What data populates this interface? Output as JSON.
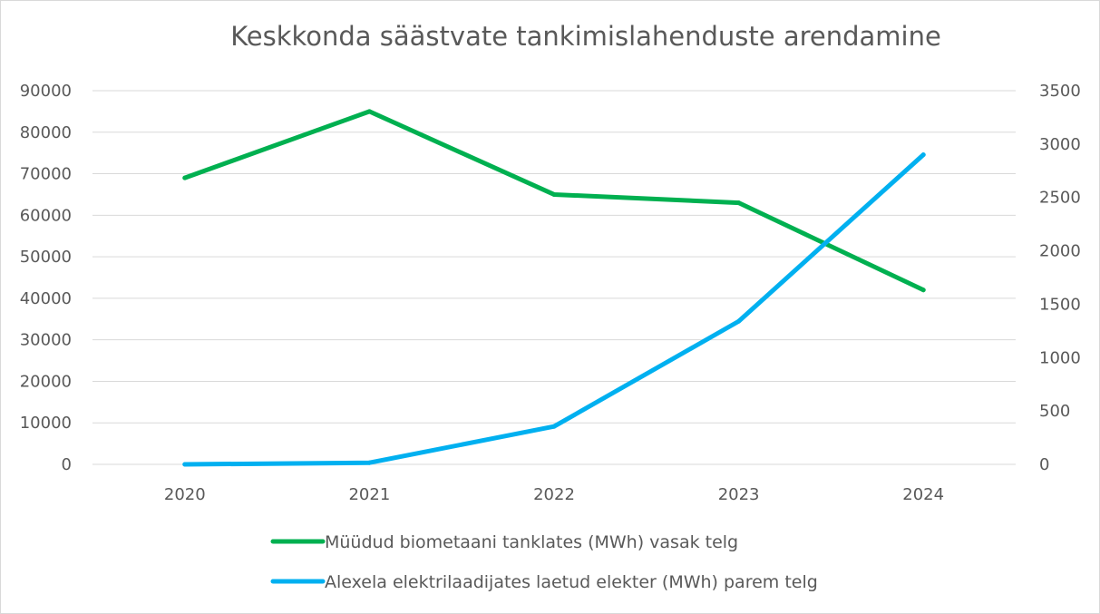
{
  "chart_data": {
    "type": "line",
    "title": "Keskkonda säästvate tankimislahenduste arendamine",
    "categories": [
      "2020",
      "2021",
      "2022",
      "2023",
      "2024"
    ],
    "series": [
      {
        "name": "Müüdud biometaani tanklates (MWh) vasak telg",
        "axis": "left",
        "color": "#00B050",
        "values": [
          69000,
          85000,
          65000,
          63000,
          42000
        ]
      },
      {
        "name": "Alexela elektrilaadijates laetud elekter (MWh) parem telg",
        "axis": "right",
        "color": "#00B0F0",
        "values": [
          0,
          15,
          355,
          1340,
          2900
        ]
      }
    ],
    "left_axis": {
      "ylim": [
        0,
        90000
      ],
      "ticks": [
        "0",
        "10000",
        "20000",
        "30000",
        "40000",
        "50000",
        "60000",
        "70000",
        "80000",
        "90000"
      ]
    },
    "right_axis": {
      "ylim": [
        0,
        3500
      ],
      "ticks": [
        "0",
        "500",
        "1000",
        "1500",
        "2000",
        "2500",
        "3000",
        "3500"
      ]
    },
    "grid": true,
    "legend_position": "bottom"
  }
}
